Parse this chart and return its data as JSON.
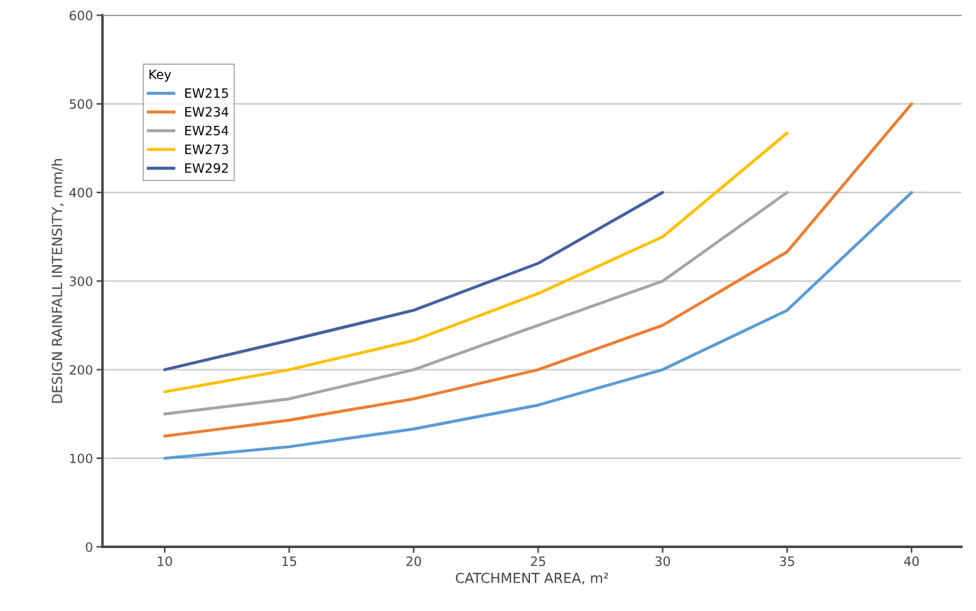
{
  "chart_data": {
    "type": "line",
    "xlabel": "CATCHMENT AREA, m²",
    "ylabel": "DESIGN RAINFALL INTENSITY, mm/h",
    "legend_title": "Key",
    "legend": "top left",
    "grid": "y",
    "marker": "none",
    "line_style": "solid",
    "xlim": [
      7.5,
      42
    ],
    "xticks": [
      10,
      15,
      20,
      25,
      30,
      35,
      40
    ],
    "ylim": [
      0,
      600
    ],
    "yticks": [
      0,
      100,
      200,
      300,
      400,
      500,
      600
    ],
    "series": [
      {
        "name": "EW215",
        "color": "#5b9bd5",
        "x": [
          10,
          15,
          20,
          25,
          30,
          35,
          40
        ],
        "values": [
          100,
          113,
          133,
          160,
          200,
          267,
          400
        ]
      },
      {
        "name": "EW234",
        "color": "#ed7d31",
        "x": [
          10,
          15,
          20,
          25,
          30,
          35,
          40
        ],
        "values": [
          125,
          143,
          167,
          200,
          250,
          333,
          500
        ]
      },
      {
        "name": "EW254",
        "color": "#a5a5a5",
        "x": [
          10,
          15,
          20,
          25,
          30,
          35
        ],
        "values": [
          150,
          167,
          200,
          250,
          300,
          400
        ]
      },
      {
        "name": "EW273",
        "color": "#ffc000",
        "x": [
          10,
          15,
          20,
          25,
          30,
          35
        ],
        "values": [
          175,
          200,
          233,
          286,
          350,
          467
        ]
      },
      {
        "name": "EW292",
        "color": "#44609f",
        "x": [
          10,
          15,
          20,
          25,
          30
        ],
        "values": [
          200,
          233,
          267,
          320,
          400
        ]
      }
    ]
  }
}
